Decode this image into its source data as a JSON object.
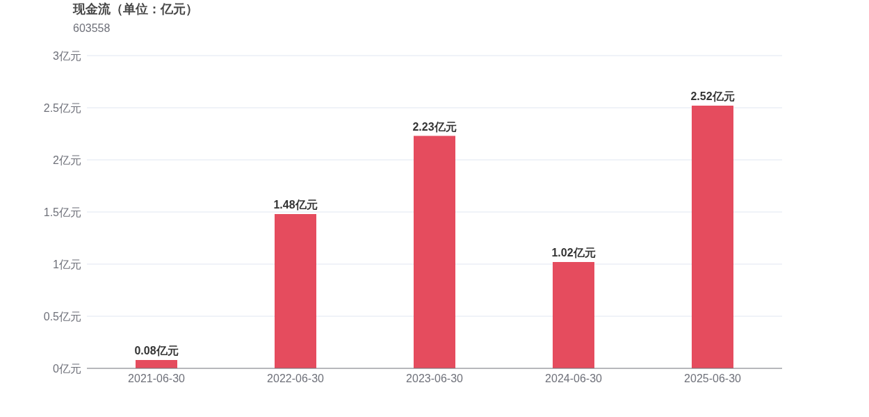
{
  "chart_data": {
    "type": "bar",
    "title": "现金流（单位：亿元）",
    "subtitle": "603558",
    "categories": [
      "2021-06-30",
      "2022-06-30",
      "2023-06-30",
      "2024-06-30",
      "2025-06-30"
    ],
    "values": [
      0.08,
      1.48,
      2.23,
      1.02,
      2.52
    ],
    "value_labels": [
      "0.08亿元",
      "1.48亿元",
      "2.23亿元",
      "1.02亿元",
      "2.52亿元"
    ],
    "color": "#e54c5e",
    "ylim": [
      0,
      3
    ],
    "yticks": [
      {
        "value": 0,
        "label": "0亿元"
      },
      {
        "value": 0.5,
        "label": "0.5亿元"
      },
      {
        "value": 1,
        "label": "1亿元"
      },
      {
        "value": 1.5,
        "label": "1.5亿元"
      },
      {
        "value": 2,
        "label": "2亿元"
      },
      {
        "value": 2.5,
        "label": "2.5亿元"
      },
      {
        "value": 3,
        "label": "3亿元"
      }
    ],
    "grid": "y"
  }
}
